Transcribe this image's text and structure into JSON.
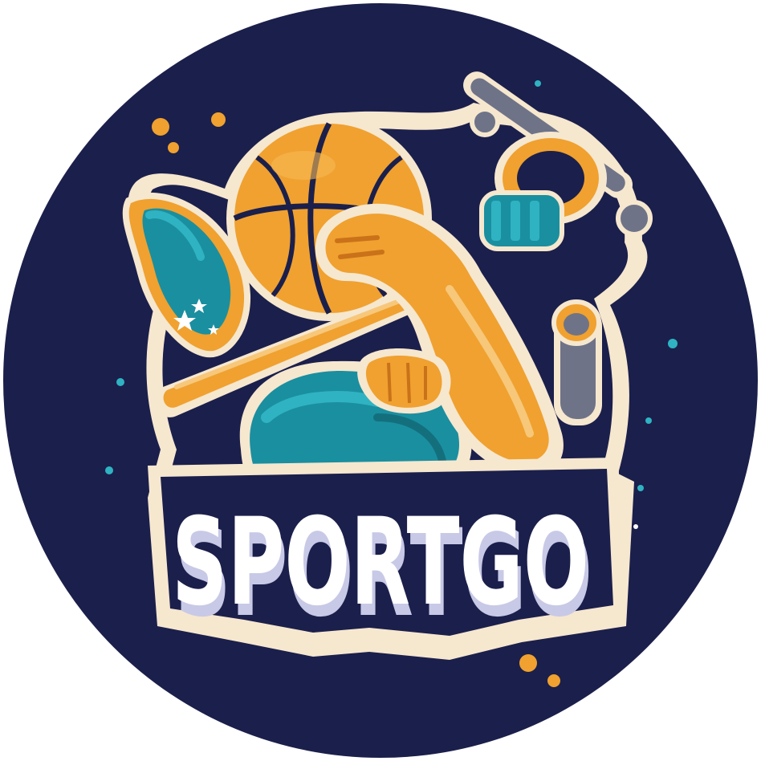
{
  "logo": {
    "wordmark": "SPORTGO",
    "colors": {
      "background_circle": "#1b1f4b",
      "outline_cream": "#f6e7cf",
      "orange": "#f0a12f",
      "orange_dark": "#c9721a",
      "teal": "#1a8fa0",
      "teal_light": "#2fb3c3",
      "gray_metal": "#6f7388",
      "white": "#ffffff",
      "shadow_lavender": "#c8c9e6"
    },
    "icons": [
      "basketball-icon",
      "fist-icon",
      "bat-icon",
      "dumbbell-icon",
      "boxing-glove-icon",
      "racket-icon",
      "stars-icon"
    ]
  }
}
